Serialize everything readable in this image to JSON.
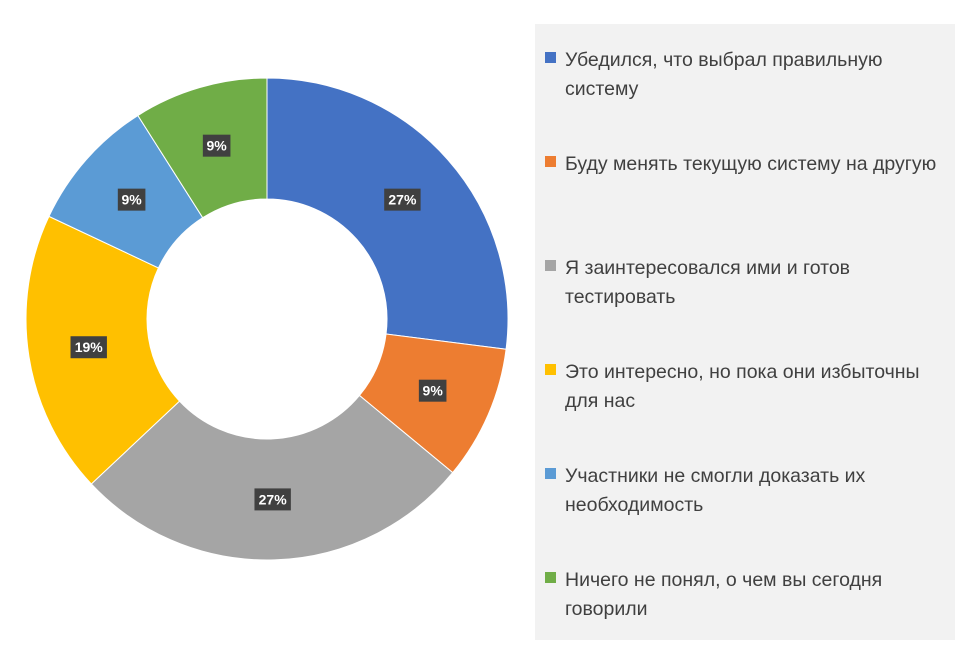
{
  "chart_data": {
    "type": "pie",
    "variant": "donut",
    "title": "",
    "categories": [
      "Убедился, что выбрал правильную систему",
      "Буду менять текущую систему на другую",
      "Я заинтересовался ими и готов тестировать",
      "Это интересно, но пока они избыточны для нас",
      "Участники не смогли доказать их необходимость",
      "Ничего не понял, о чем вы сегодня говорили"
    ],
    "values": [
      27,
      9,
      27,
      19,
      9,
      9
    ],
    "data_labels": [
      "27%",
      "9%",
      "27%",
      "19%",
      "9%",
      "9%"
    ],
    "colors": [
      "#4472c4",
      "#ed7d31",
      "#a5a5a5",
      "#ffc000",
      "#5b9bd5",
      "#70ad47"
    ],
    "unit": "%",
    "legend_position": "right",
    "start_angle": "top",
    "direction": "clockwise"
  }
}
